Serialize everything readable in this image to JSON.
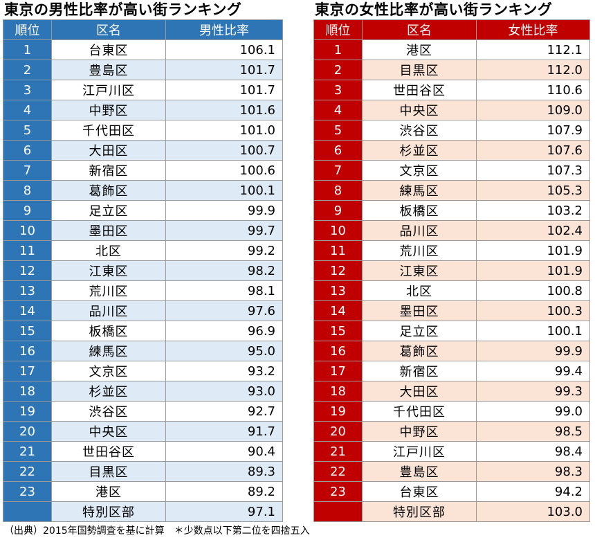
{
  "left": {
    "title": "東京の男性比率が高い街ランキング",
    "headers": [
      "順位",
      "区名",
      "男性比率"
    ],
    "rows": [
      {
        "rank": "1",
        "name": "台東区",
        "value": "106.1"
      },
      {
        "rank": "2",
        "name": "豊島区",
        "value": "101.7"
      },
      {
        "rank": "3",
        "name": "江戸川区",
        "value": "101.7"
      },
      {
        "rank": "4",
        "name": "中野区",
        "value": "101.6"
      },
      {
        "rank": "5",
        "name": "千代田区",
        "value": "101.0"
      },
      {
        "rank": "6",
        "name": "大田区",
        "value": "100.7"
      },
      {
        "rank": "7",
        "name": "新宿区",
        "value": "100.6"
      },
      {
        "rank": "8",
        "name": "葛飾区",
        "value": "100.1"
      },
      {
        "rank": "9",
        "name": "足立区",
        "value": "99.9"
      },
      {
        "rank": "10",
        "name": "墨田区",
        "value": "99.7"
      },
      {
        "rank": "11",
        "name": "北区",
        "value": "99.2"
      },
      {
        "rank": "12",
        "name": "江東区",
        "value": "98.2"
      },
      {
        "rank": "13",
        "name": "荒川区",
        "value": "98.1"
      },
      {
        "rank": "14",
        "name": "品川区",
        "value": "97.6"
      },
      {
        "rank": "15",
        "name": "板橋区",
        "value": "96.9"
      },
      {
        "rank": "16",
        "name": "練馬区",
        "value": "95.0"
      },
      {
        "rank": "17",
        "name": "文京区",
        "value": "93.2"
      },
      {
        "rank": "18",
        "name": "杉並区",
        "value": "93.0"
      },
      {
        "rank": "19",
        "name": "渋谷区",
        "value": "92.7"
      },
      {
        "rank": "20",
        "name": "中央区",
        "value": "91.7"
      },
      {
        "rank": "21",
        "name": "世田谷区",
        "value": "90.4"
      },
      {
        "rank": "22",
        "name": "目黒区",
        "value": "89.3"
      },
      {
        "rank": "23",
        "name": "港区",
        "value": "89.2"
      },
      {
        "rank": "",
        "name": "特別区部",
        "value": "97.1"
      }
    ]
  },
  "right": {
    "title": "東京の女性比率が高い街ランキング",
    "headers": [
      "順位",
      "区名",
      "女性比率"
    ],
    "rows": [
      {
        "rank": "1",
        "name": "港区",
        "value": "112.1"
      },
      {
        "rank": "2",
        "name": "目黒区",
        "value": "112.0"
      },
      {
        "rank": "3",
        "name": "世田谷区",
        "value": "110.6"
      },
      {
        "rank": "4",
        "name": "中央区",
        "value": "109.0"
      },
      {
        "rank": "5",
        "name": "渋谷区",
        "value": "107.9"
      },
      {
        "rank": "6",
        "name": "杉並区",
        "value": "107.6"
      },
      {
        "rank": "7",
        "name": "文京区",
        "value": "107.3"
      },
      {
        "rank": "8",
        "name": "練馬区",
        "value": "105.3"
      },
      {
        "rank": "9",
        "name": "板橋区",
        "value": "103.2"
      },
      {
        "rank": "10",
        "name": "品川区",
        "value": "102.4"
      },
      {
        "rank": "11",
        "name": "荒川区",
        "value": "101.9"
      },
      {
        "rank": "12",
        "name": "江東区",
        "value": "101.9"
      },
      {
        "rank": "13",
        "name": "北区",
        "value": "100.8"
      },
      {
        "rank": "14",
        "name": "墨田区",
        "value": "100.3"
      },
      {
        "rank": "15",
        "name": "足立区",
        "value": "100.1"
      },
      {
        "rank": "16",
        "name": "葛飾区",
        "value": "99.9"
      },
      {
        "rank": "17",
        "name": "新宿区",
        "value": "99.4"
      },
      {
        "rank": "18",
        "name": "大田区",
        "value": "99.3"
      },
      {
        "rank": "19",
        "name": "千代田区",
        "value": "99.0"
      },
      {
        "rank": "20",
        "name": "中野区",
        "value": "98.5"
      },
      {
        "rank": "21",
        "name": "江戸川区",
        "value": "98.4"
      },
      {
        "rank": "22",
        "name": "豊島区",
        "value": "98.3"
      },
      {
        "rank": "23",
        "name": "台東区",
        "value": "94.2"
      },
      {
        "rank": "",
        "name": "特別区部",
        "value": "103.0"
      }
    ]
  },
  "footer": "（出典）2015年国勢調査を基に計算　＊少数点以下第二位を四捨五入"
}
